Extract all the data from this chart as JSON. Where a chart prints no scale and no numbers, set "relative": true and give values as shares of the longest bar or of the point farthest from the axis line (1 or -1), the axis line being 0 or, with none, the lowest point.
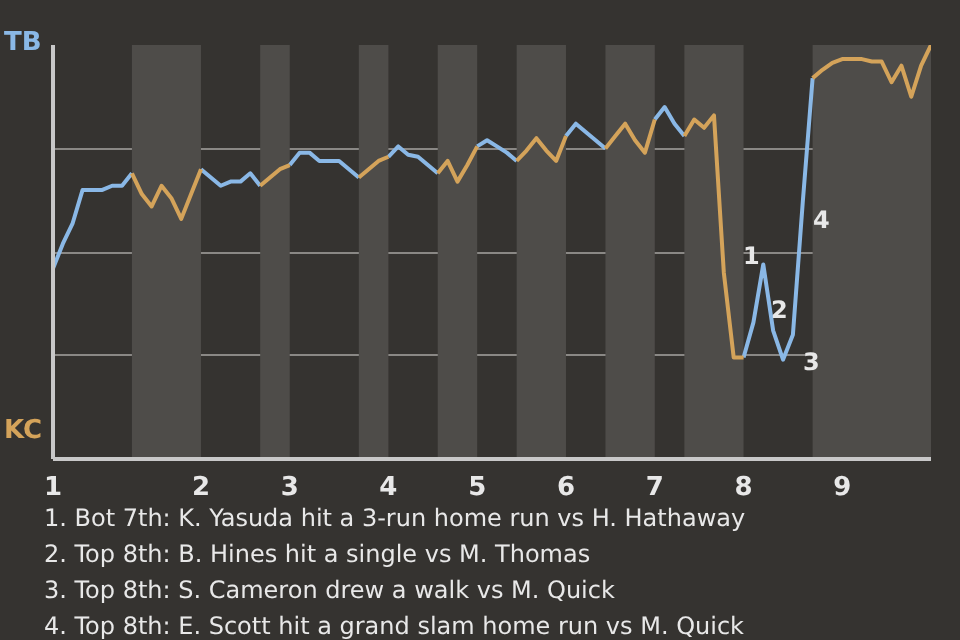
{
  "chart_data": {
    "type": "line",
    "categories": [
      "1",
      null,
      null,
      null,
      null,
      null,
      null,
      null,
      null,
      null,
      null,
      null,
      null,
      null,
      null,
      "2",
      null,
      null,
      null,
      null,
      null,
      null,
      null,
      null,
      "3",
      null,
      null,
      null,
      null,
      null,
      null,
      null,
      null,
      null,
      "4",
      null,
      null,
      null,
      null,
      null,
      null,
      null,
      null,
      "5",
      null,
      null,
      null,
      null,
      null,
      null,
      null,
      null,
      "6",
      null,
      null,
      null,
      null,
      null,
      null,
      null,
      null,
      "7",
      null,
      null,
      null,
      null,
      null,
      null,
      null,
      null,
      "8",
      null,
      null,
      null,
      null,
      null,
      null,
      null,
      null,
      null,
      "9",
      null,
      null,
      null,
      null,
      null,
      null,
      null,
      null,
      null
    ],
    "relative": true,
    "tick_labels": "x",
    "grid": "y",
    "line_style": "solid",
    "series": [
      {
        "name": "TB",
        "color": "#8ab8e6",
        "values": [
          0.46,
          0.52,
          0.57,
          0.65,
          0.65,
          0.65,
          0.66,
          0.66,
          0.69,
          null,
          null,
          null,
          null,
          null,
          null,
          0.7,
          0.68,
          0.66,
          0.67,
          0.67,
          0.69,
          0.66,
          null,
          null,
          0.71,
          0.74,
          0.74,
          0.72,
          0.72,
          0.72,
          0.7,
          0.68,
          null,
          null,
          0.73,
          0.755,
          0.735,
          0.73,
          0.71,
          0.69,
          null,
          null,
          null,
          0.755,
          0.77,
          0.755,
          0.74,
          0.72,
          null,
          null,
          null,
          null,
          0.78,
          0.81,
          0.79,
          0.77,
          0.75,
          null,
          null,
          null,
          null,
          0.82,
          0.85,
          0.81,
          0.78,
          null,
          null,
          null,
          null,
          null,
          0.245,
          0.33,
          0.47,
          0.31,
          0.24,
          0.3,
          0.62,
          0.92,
          null,
          null,
          null,
          null,
          null,
          null,
          null,
          null,
          null,
          null,
          null,
          null
        ]
      },
      {
        "name": "KC",
        "color": "#d4a35a",
        "values": [
          null,
          null,
          null,
          null,
          null,
          null,
          null,
          null,
          0.69,
          0.64,
          0.61,
          0.66,
          0.63,
          0.58,
          0.64,
          0.7,
          null,
          null,
          null,
          null,
          null,
          0.66,
          0.68,
          0.7,
          0.71,
          null,
          null,
          null,
          null,
          null,
          null,
          0.68,
          0.7,
          0.72,
          0.73,
          null,
          null,
          null,
          null,
          0.69,
          0.72,
          0.67,
          0.71,
          0.755,
          null,
          null,
          null,
          0.72,
          0.745,
          0.775,
          0.745,
          0.72,
          0.78,
          null,
          null,
          null,
          0.75,
          0.78,
          0.81,
          0.77,
          0.74,
          0.82,
          null,
          null,
          0.78,
          0.82,
          0.8,
          0.83,
          0.45,
          0.245,
          0.245,
          null,
          null,
          null,
          null,
          null,
          null,
          0.92,
          0.94,
          0.957,
          0.966,
          0.966,
          0.966,
          0.96,
          0.96,
          0.91,
          0.95,
          0.875,
          0.95,
          1.0
        ]
      }
    ],
    "annotations": [
      "1",
      "2",
      "3",
      "4",
      "1. Bot 7th: K. Yasuda hit a 3-run home run vs H. Hathaway",
      "2. Top 8th: B. Hines hit a single vs M. Thomas",
      "3. Top 8th: S. Cameron drew a walk vs M. Quick",
      "4. Top 8th: E. Scott hit a grand slam home run vs M. Quick"
    ]
  }
}
